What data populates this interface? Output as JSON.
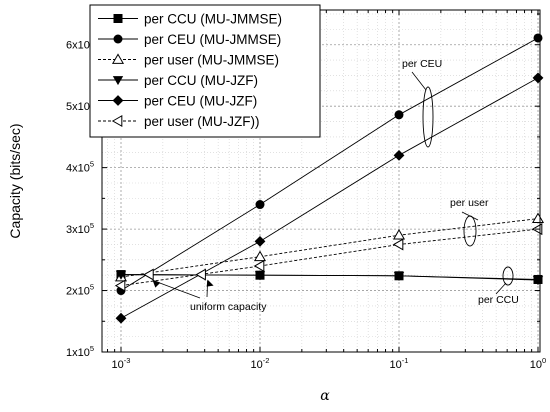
{
  "chart_data": {
    "type": "line",
    "xscale": "log",
    "xlabel": "α",
    "ylabel": "Capacity (bits/sec)",
    "x": [
      0.001,
      0.01,
      0.1,
      1
    ],
    "xlim": [
      0.001,
      1
    ],
    "ylim": [
      100000,
      650000
    ],
    "grid": true,
    "legend_placement": "top-left",
    "x_ticks": [
      {
        "value": 0.001,
        "base": "10",
        "exp": "-3"
      },
      {
        "value": 0.01,
        "base": "10",
        "exp": "-2"
      },
      {
        "value": 0.1,
        "base": "10",
        "exp": "-1"
      },
      {
        "value": 1,
        "base": "10",
        "exp": "0"
      }
    ],
    "y_ticks": [
      {
        "value": 100000,
        "mant": "1x10",
        "exp": "5"
      },
      {
        "value": 200000,
        "mant": "2x10",
        "exp": "5"
      },
      {
        "value": 300000,
        "mant": "3x10",
        "exp": "5"
      },
      {
        "value": 400000,
        "mant": "4x10",
        "exp": "5"
      },
      {
        "value": 500000,
        "mant": "5x10",
        "exp": "5"
      },
      {
        "value": 600000,
        "mant": "6x10",
        "exp": "5"
      }
    ],
    "series": [
      {
        "name": "per CCU (MU-JMMSE)",
        "marker": "square",
        "dash": "solid",
        "values": [
          226000,
          225000,
          224000,
          218000
        ]
      },
      {
        "name": "per CEU (MU-JMMSE)",
        "marker": "circle",
        "dash": "solid",
        "values": [
          200000,
          340000,
          486000,
          611000
        ]
      },
      {
        "name": "per user (MU-JMMSE)",
        "marker": "triangle-up-open",
        "dash": "dashed",
        "values": [
          222000,
          255000,
          290000,
          317000
        ]
      },
      {
        "name": "per CCU (MU-JZF)",
        "marker": "triangle-down",
        "dash": "solid",
        "values": [
          226000,
          225000,
          224000,
          217000
        ]
      },
      {
        "name": "per CEU (MU-JZF)",
        "marker": "diamond",
        "dash": "solid",
        "values": [
          155000,
          280000,
          420000,
          546000
        ]
      },
      {
        "name": "per user (MU-JZF))",
        "marker": "triangle-left-open",
        "dash": "dashed",
        "values": [
          208000,
          240000,
          275000,
          300000
        ]
      }
    ],
    "annotations": [
      {
        "text": "per CEU"
      },
      {
        "text": "per user"
      },
      {
        "text": "per CCU"
      },
      {
        "text": "uniform capacity"
      }
    ],
    "crossings": [
      {
        "x": 0.0016,
        "y": 226000,
        "marker": "triangle-left-open"
      },
      {
        "x": 0.0038,
        "y": 226000,
        "marker": "triangle-left-open"
      }
    ]
  }
}
